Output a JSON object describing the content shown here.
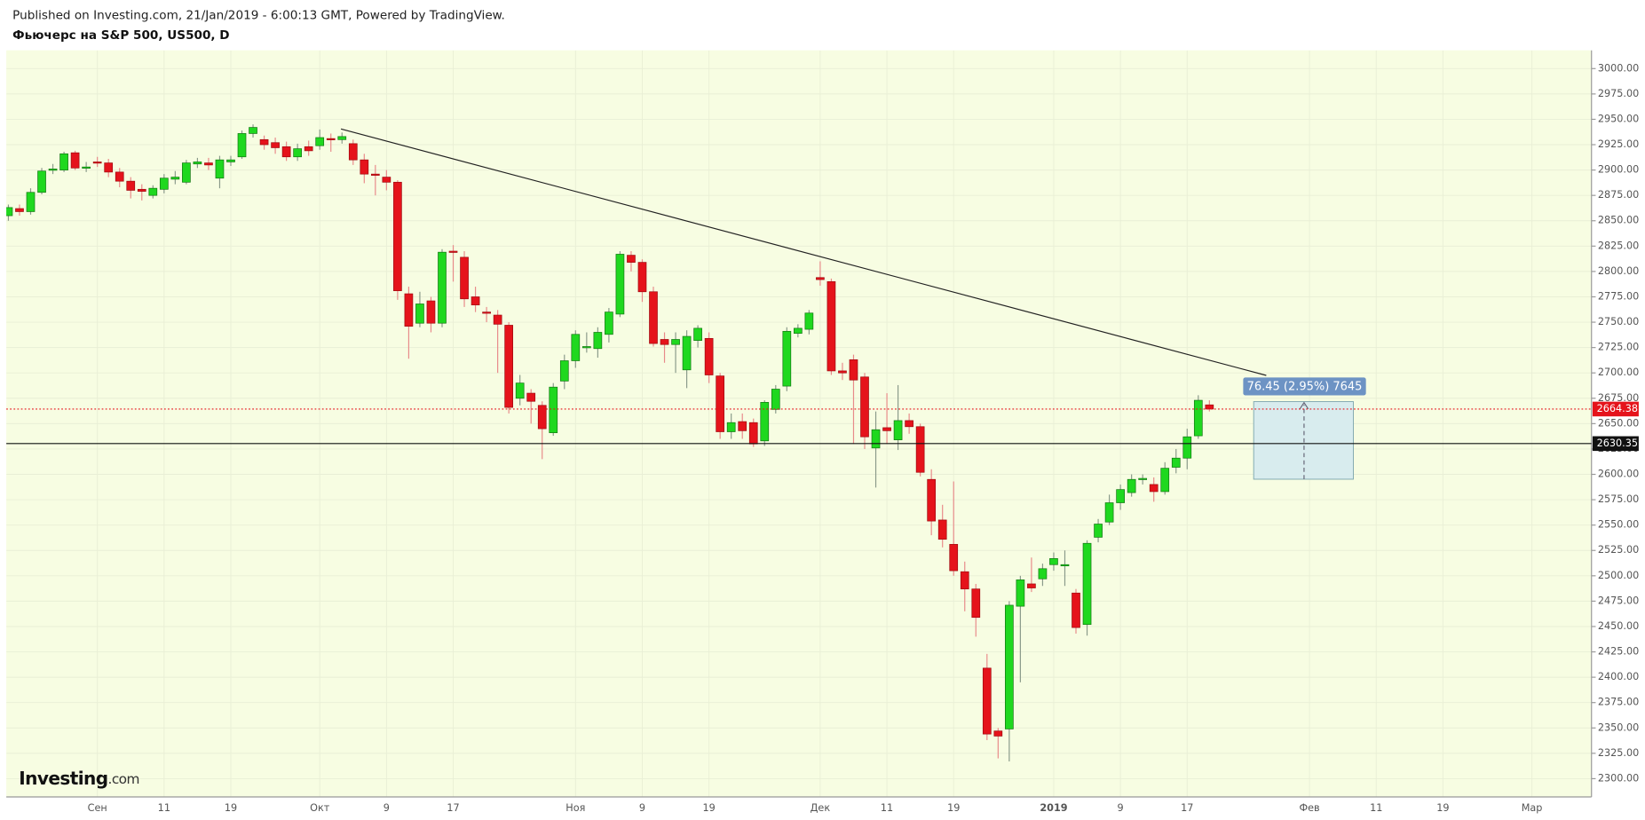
{
  "header": {
    "published": "Published on Investing.com, 21/Jan/2019 - 6:00:13 GMT, Powered by TradingView.",
    "logo_name": "Investing",
    "logo_suffix": ".com"
  },
  "chart_data": {
    "type": "candlestick",
    "title": "Фьючерс на S&P 500, US500, D",
    "categories": [
      null,
      null,
      null,
      null,
      null,
      null,
      null,
      null,
      "Сен",
      null,
      null,
      null,
      null,
      null,
      "11",
      null,
      null,
      null,
      null,
      null,
      "19",
      null,
      null,
      null,
      null,
      null,
      null,
      null,
      "Окт",
      null,
      null,
      null,
      null,
      null,
      "9",
      null,
      null,
      null,
      null,
      null,
      "17",
      null,
      null,
      null,
      null,
      null,
      null,
      null,
      null,
      null,
      null,
      "Ноя",
      null,
      null,
      null,
      null,
      null,
      "9",
      null,
      null,
      null,
      null,
      null,
      "19",
      null,
      null,
      null,
      null,
      null,
      null,
      null,
      null,
      null,
      "Дек",
      null,
      null,
      null,
      null,
      null,
      "11",
      null,
      null,
      null,
      null,
      null,
      "19",
      null,
      null,
      null,
      null,
      null,
      null,
      null,
      null,
      "2019",
      null,
      null,
      null,
      null,
      null,
      "9",
      null,
      null,
      null,
      null,
      null,
      "17",
      null,
      null,
      null,
      null,
      null,
      null,
      null,
      null,
      null,
      null,
      "Фев",
      null,
      null,
      null,
      null,
      null,
      "11",
      null,
      null,
      null,
      null,
      null,
      "19",
      null,
      null,
      null,
      null,
      null,
      null,
      null,
      "Мар",
      null,
      null,
      null,
      null
    ],
    "open": [
      2855,
      2862,
      2859,
      2878,
      2900,
      2900,
      2917,
      2902,
      2908,
      2907,
      2898,
      2889,
      2881,
      2875,
      2881,
      2891,
      2888,
      2906,
      2907,
      2892,
      2908,
      2913,
      2936,
      2930,
      2927,
      2923,
      2913,
      2923,
      2924,
      2931,
      2930,
      2926,
      2910,
      2896,
      2893,
      2888,
      2778,
      2749,
      2771,
      2749,
      2820,
      2814,
      2775,
      2760,
      2757,
      2747,
      2675,
      2680,
      2668,
      2641,
      2692,
      2712,
      2725,
      2724,
      2738,
      2758,
      2816,
      2809,
      2780,
      2733,
      2728,
      2703,
      2732,
      2734,
      2697,
      2642,
      2652,
      2651,
      2633,
      2664,
      2687,
      2739,
      2743,
      2794,
      2790,
      2702,
      2713,
      2696,
      2626,
      2646,
      2634,
      2653,
      2647,
      2595,
      2555,
      2531,
      2504,
      2487,
      2409,
      2347,
      2349,
      2470,
      2492,
      2497,
      2511,
      2510,
      2483,
      2452,
      2538,
      2553,
      2572,
      2582,
      2595,
      2590,
      2583,
      2607,
      2616,
      2638,
      2668.5,
      null,
      null,
      null,
      null,
      null,
      null,
      null,
      null,
      null,
      null,
      null,
      null,
      null,
      null,
      null,
      null,
      null,
      null,
      null,
      null,
      null,
      null,
      null,
      null,
      null,
      null,
      null,
      null,
      null,
      null,
      null,
      null,
      null
    ],
    "high": [
      2866,
      2866,
      2882,
      2902,
      2906,
      2918,
      2919,
      2908,
      2913,
      2911,
      2902,
      2893,
      2886,
      2885,
      2896,
      2899,
      2910,
      2912,
      2912,
      2914,
      2914,
      2939,
      2945,
      2934,
      2932,
      2928,
      2926,
      2929,
      2940,
      2936,
      2937,
      2930,
      2916,
      2905,
      2900,
      2890,
      2785,
      2780,
      2775,
      2822,
      2826,
      2820,
      2785,
      2765,
      2762,
      2750,
      2698,
      2684,
      2672,
      2690,
      2718,
      2742,
      2740,
      2745,
      2764,
      2820,
      2820,
      2812,
      2785,
      2740,
      2740,
      2742,
      2747,
      2740,
      2700,
      2660,
      2660,
      2655,
      2673,
      2688,
      2745,
      2748,
      2762,
      2810,
      2793,
      2710,
      2718,
      2700,
      2662,
      2680,
      2688,
      2660,
      2650,
      2605,
      2570,
      2593,
      2514,
      2492,
      2423,
      2350,
      2475,
      2500,
      2518,
      2512,
      2523,
      2525,
      2487,
      2535,
      2556,
      2580,
      2590,
      2600,
      2600,
      2597,
      2612,
      2625,
      2645,
      2678,
      2673,
      null,
      null,
      null,
      null,
      null,
      null,
      null,
      null,
      null,
      null,
      null,
      null,
      null,
      null,
      null,
      null,
      null,
      null,
      null,
      null,
      null,
      null,
      null,
      null,
      null,
      null,
      null,
      null,
      null,
      null,
      null,
      null,
      null
    ],
    "low": [
      2850,
      2855,
      2856,
      2876,
      2896,
      2898,
      2900,
      2898,
      2903,
      2893,
      2883,
      2872,
      2870,
      2872,
      2877,
      2886,
      2886,
      2902,
      2900,
      2882,
      2904,
      2911,
      2932,
      2920,
      2916,
      2909,
      2909,
      2914,
      2920,
      2918,
      2926,
      2905,
      2887,
      2875,
      2880,
      2772,
      2714,
      2745,
      2740,
      2745,
      2790,
      2765,
      2760,
      2750,
      2700,
      2660,
      2668,
      2650,
      2615,
      2638,
      2684,
      2705,
      2720,
      2715,
      2730,
      2755,
      2800,
      2770,
      2726,
      2710,
      2700,
      2685,
      2725,
      2690,
      2635,
      2635,
      2635,
      2627,
      2628,
      2660,
      2682,
      2735,
      2738,
      2786,
      2698,
      2693,
      2630,
      2625,
      2587,
      2630,
      2624,
      2640,
      2598,
      2540,
      2528,
      2500,
      2465,
      2440,
      2338,
      2320,
      2317,
      2395,
      2484,
      2490,
      2505,
      2490,
      2443,
      2441,
      2533,
      2550,
      2565,
      2578,
      2590,
      2573,
      2580,
      2601,
      2605,
      2635,
      2662,
      null,
      null,
      null,
      null,
      null,
      null,
      null,
      null,
      null,
      null,
      null,
      null,
      null,
      null,
      null,
      null,
      null,
      null,
      null,
      null,
      null,
      null,
      null,
      null,
      null,
      null,
      null,
      null,
      null,
      null,
      null,
      null,
      null
    ],
    "close": [
      2863,
      2859,
      2878,
      2899,
      2901,
      2916,
      2902,
      2903,
      2907,
      2898,
      2889,
      2880,
      2879,
      2882,
      2892,
      2893,
      2907,
      2908,
      2905,
      2910,
      2910,
      2936,
      2942,
      2925,
      2922,
      2913,
      2921,
      2919,
      2932,
      2930,
      2933,
      2910,
      2896,
      2895,
      2888,
      2781,
      2746,
      2768,
      2749,
      2819,
      2819,
      2773,
      2767,
      2759,
      2748,
      2666,
      2690,
      2672,
      2645,
      2686,
      2712,
      2738,
      2726,
      2740,
      2760,
      2817,
      2809,
      2780,
      2729,
      2728,
      2733,
      2736,
      2744,
      2698,
      2642,
      2651,
      2643,
      2630,
      2671,
      2684,
      2741,
      2744,
      2759,
      2792,
      2702,
      2700,
      2693,
      2637,
      2644,
      2643,
      2653,
      2647,
      2602,
      2554,
      2536,
      2505,
      2487,
      2459,
      2344,
      2342,
      2471,
      2496,
      2488,
      2507,
      2517,
      2511,
      2449,
      2532,
      2551,
      2572,
      2585,
      2595,
      2596,
      2583,
      2606,
      2616,
      2637,
      2673,
      2664.38,
      null,
      null,
      null,
      null,
      null,
      null,
      null,
      null,
      null,
      null,
      null,
      null,
      null,
      null,
      null,
      null,
      null,
      null,
      null,
      null,
      null,
      null,
      null,
      null,
      null,
      null,
      null,
      null,
      null,
      null,
      null,
      null,
      null
    ],
    "up_color": "#1fd81f",
    "down_color": "#e5131b",
    "last_price": 2664.38,
    "horizontal_line": 2630.35,
    "measure_label": "76.45 (2.95%) 7645",
    "ylim": [
      2282,
      3018
    ],
    "yticks": [
      {
        "value": 2300,
        "label": "2300.00"
      },
      {
        "value": 2325,
        "label": "2325.00"
      },
      {
        "value": 2350,
        "label": "2350.00"
      },
      {
        "value": 2375,
        "label": "2375.00"
      },
      {
        "value": 2400,
        "label": "2400.00"
      },
      {
        "value": 2425,
        "label": "2425.00"
      },
      {
        "value": 2450,
        "label": "2450.00"
      },
      {
        "value": 2475,
        "label": "2475.00"
      },
      {
        "value": 2500,
        "label": "2500.00"
      },
      {
        "value": 2525,
        "label": "2525.00"
      },
      {
        "value": 2550,
        "label": "2550.00"
      },
      {
        "value": 2575,
        "label": "2575.00"
      },
      {
        "value": 2600,
        "label": "2600.00"
      },
      {
        "value": 2625,
        "label": "2625.00"
      },
      {
        "value": 2650,
        "label": "2650.00"
      },
      {
        "value": 2675,
        "label": "2675.00"
      },
      {
        "value": 2700,
        "label": "2700.00"
      },
      {
        "value": 2725,
        "label": "2725.00"
      },
      {
        "value": 2750,
        "label": "2750.00"
      },
      {
        "value": 2775,
        "label": "2775.00"
      },
      {
        "value": 2800,
        "label": "2800.00"
      },
      {
        "value": 2825,
        "label": "2825.00"
      },
      {
        "value": 2850,
        "label": "2850.00"
      },
      {
        "value": 2875,
        "label": "2875.00"
      },
      {
        "value": 2900,
        "label": "2900.00"
      },
      {
        "value": 2925,
        "label": "2925.00"
      },
      {
        "value": 2950,
        "label": "2950.00"
      },
      {
        "value": 2975,
        "label": "2975.00"
      },
      {
        "value": 3000,
        "label": "3000.00"
      }
    ],
    "grid": true
  }
}
